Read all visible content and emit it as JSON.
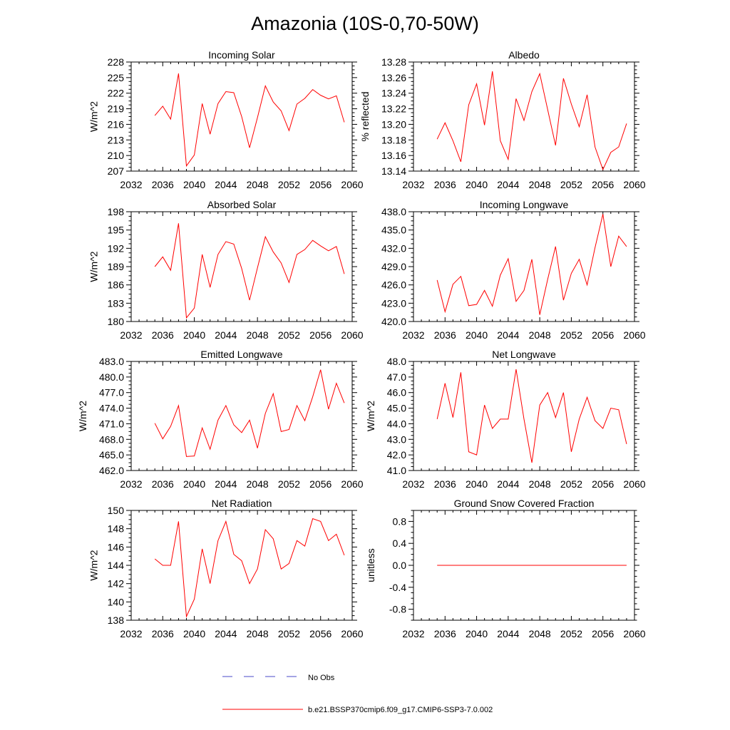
{
  "figure": {
    "title": "Amazonia (10S-0,70-50W)",
    "legend": [
      {
        "label": "No Obs",
        "style": "dashed",
        "color": "#4a4ac8"
      },
      {
        "label": "b.e21.BSSP370cmip6.f09_g17.CMIP6-SSP3-7.0.002",
        "style": "solid",
        "color": "#ff0000"
      }
    ]
  },
  "chart_data": [
    {
      "type": "line",
      "title": "Incoming Solar",
      "ylabel": "W/m^2",
      "xlim": [
        2032,
        2060
      ],
      "ylim": [
        207,
        228
      ],
      "xticks": [
        "2032",
        "2036",
        "2040",
        "2044",
        "2048",
        "2052",
        "2056",
        "2060"
      ],
      "yticks": [
        "207",
        "210",
        "213",
        "216",
        "219",
        "222",
        "225",
        "228"
      ],
      "x": [
        2035,
        2036,
        2037,
        2038,
        2039,
        2040,
        2041,
        2042,
        2043,
        2044,
        2045,
        2046,
        2047,
        2048,
        2049,
        2050,
        2051,
        2052,
        2053,
        2054,
        2055,
        2056,
        2057,
        2058,
        2059
      ],
      "series": [
        {
          "color": "#ff0000",
          "values": [
            217.7,
            219.5,
            217.0,
            225.8,
            208.0,
            210.1,
            220.0,
            214.1,
            220.0,
            222.3,
            222.1,
            217.5,
            211.5,
            217.3,
            223.4,
            220.3,
            218.6,
            214.8,
            219.9,
            221.0,
            222.7,
            221.6,
            220.9,
            221.5,
            216.4
          ]
        }
      ]
    },
    {
      "type": "line",
      "title": "Albedo",
      "ylabel": "% reflected",
      "xlim": [
        2032,
        2060
      ],
      "ylim": [
        13.14,
        13.28
      ],
      "xticks": [
        "2032",
        "2036",
        "2040",
        "2044",
        "2048",
        "2052",
        "2056",
        "2060"
      ],
      "yticks": [
        "13.14",
        "13.16",
        "13.18",
        "13.20",
        "13.22",
        "13.24",
        "13.26",
        "13.28"
      ],
      "x": [
        2035,
        2036,
        2037,
        2038,
        2039,
        2040,
        2041,
        2042,
        2043,
        2044,
        2045,
        2046,
        2047,
        2048,
        2049,
        2050,
        2051,
        2052,
        2053,
        2054,
        2055,
        2056,
        2057,
        2058,
        2059
      ],
      "series": [
        {
          "color": "#ff0000",
          "values": [
            13.181,
            13.202,
            13.179,
            13.152,
            13.225,
            13.252,
            13.199,
            13.268,
            13.179,
            13.155,
            13.233,
            13.205,
            13.242,
            13.265,
            13.219,
            13.173,
            13.259,
            13.226,
            13.197,
            13.238,
            13.171,
            13.142,
            13.164,
            13.171,
            13.201
          ]
        }
      ]
    },
    {
      "type": "line",
      "title": "Absorbed Solar",
      "ylabel": "W/m^2",
      "xlim": [
        2032,
        2060
      ],
      "ylim": [
        180,
        198
      ],
      "xticks": [
        "2032",
        "2036",
        "2040",
        "2044",
        "2048",
        "2052",
        "2056",
        "2060"
      ],
      "yticks": [
        "180",
        "183",
        "186",
        "189",
        "192",
        "195",
        "198"
      ],
      "x": [
        2035,
        2036,
        2037,
        2038,
        2039,
        2040,
        2041,
        2042,
        2043,
        2044,
        2045,
        2046,
        2047,
        2048,
        2049,
        2050,
        2051,
        2052,
        2053,
        2054,
        2055,
        2056,
        2057,
        2058,
        2059
      ],
      "series": [
        {
          "color": "#ff0000",
          "values": [
            189.0,
            190.6,
            188.4,
            196.1,
            180.6,
            182.2,
            191.0,
            185.6,
            191.0,
            193.1,
            192.7,
            188.7,
            183.5,
            188.8,
            193.9,
            191.4,
            189.6,
            186.4,
            191.0,
            191.8,
            193.3,
            192.4,
            191.6,
            192.3,
            187.8
          ]
        }
      ]
    },
    {
      "type": "line",
      "title": "Incoming Longwave",
      "ylabel": "",
      "xlim": [
        2032,
        2060
      ],
      "ylim": [
        420,
        438
      ],
      "xticks": [
        "2032",
        "2036",
        "2040",
        "2044",
        "2048",
        "2052",
        "2056",
        "2060"
      ],
      "yticks": [
        "420.0",
        "423.0",
        "426.0",
        "429.0",
        "432.0",
        "435.0",
        "438.0"
      ],
      "x": [
        2035,
        2036,
        2037,
        2038,
        2039,
        2040,
        2041,
        2042,
        2043,
        2044,
        2045,
        2046,
        2047,
        2048,
        2049,
        2050,
        2051,
        2052,
        2053,
        2054,
        2055,
        2056,
        2057,
        2058,
        2059
      ],
      "series": [
        {
          "color": "#ff0000",
          "values": [
            426.8,
            421.6,
            426.1,
            427.4,
            422.6,
            422.8,
            425.1,
            422.5,
            427.6,
            430.3,
            423.3,
            425.1,
            430.2,
            421.1,
            426.9,
            432.3,
            423.5,
            427.9,
            430.2,
            426.0,
            432.1,
            437.6,
            429.0,
            434.0,
            432.3
          ]
        }
      ]
    },
    {
      "type": "line",
      "title": "Emitted Longwave",
      "ylabel": "W/m^2",
      "xlim": [
        2032,
        2060
      ],
      "ylim": [
        462,
        483
      ],
      "xticks": [
        "2032",
        "2036",
        "2040",
        "2044",
        "2048",
        "2052",
        "2056",
        "2060"
      ],
      "yticks": [
        "462.0",
        "465.0",
        "468.0",
        "471.0",
        "474.0",
        "477.0",
        "480.0",
        "483.0"
      ],
      "x": [
        2035,
        2036,
        2037,
        2038,
        2039,
        2040,
        2041,
        2042,
        2043,
        2044,
        2045,
        2046,
        2047,
        2048,
        2049,
        2050,
        2051,
        2052,
        2053,
        2054,
        2055,
        2056,
        2057,
        2058,
        2059
      ],
      "series": [
        {
          "color": "#ff0000",
          "values": [
            471.1,
            468.1,
            470.5,
            474.5,
            464.7,
            464.8,
            470.2,
            466.1,
            471.7,
            474.5,
            470.8,
            469.3,
            471.7,
            466.3,
            473.0,
            476.8,
            469.5,
            469.9,
            474.5,
            471.6,
            476.2,
            481.4,
            473.8,
            478.8,
            475.0
          ]
        }
      ]
    },
    {
      "type": "line",
      "title": "Net Longwave",
      "ylabel": "W/m^2",
      "xlim": [
        2032,
        2060
      ],
      "ylim": [
        41,
        48
      ],
      "xticks": [
        "2032",
        "2036",
        "2040",
        "2044",
        "2048",
        "2052",
        "2056",
        "2060"
      ],
      "yticks": [
        "41.0",
        "42.0",
        "43.0",
        "44.0",
        "45.0",
        "46.0",
        "47.0",
        "48.0"
      ],
      "x": [
        2035,
        2036,
        2037,
        2038,
        2039,
        2040,
        2041,
        2042,
        2043,
        2044,
        2045,
        2046,
        2047,
        2048,
        2049,
        2050,
        2051,
        2052,
        2053,
        2054,
        2055,
        2056,
        2057,
        2058,
        2059
      ],
      "series": [
        {
          "color": "#ff0000",
          "values": [
            44.3,
            46.6,
            44.4,
            47.3,
            42.2,
            42.0,
            45.2,
            43.7,
            44.3,
            44.3,
            47.5,
            44.3,
            41.5,
            45.2,
            46.0,
            44.4,
            46.0,
            42.2,
            44.3,
            45.7,
            44.2,
            43.7,
            45.0,
            44.9,
            42.7
          ]
        }
      ]
    },
    {
      "type": "line",
      "title": "Net Radiation",
      "ylabel": "W/m^2",
      "xlim": [
        2032,
        2060
      ],
      "ylim": [
        138,
        150
      ],
      "xticks": [
        "2032",
        "2036",
        "2040",
        "2044",
        "2048",
        "2052",
        "2056",
        "2060"
      ],
      "yticks": [
        "138",
        "140",
        "142",
        "144",
        "146",
        "148",
        "150"
      ],
      "x": [
        2035,
        2036,
        2037,
        2038,
        2039,
        2040,
        2041,
        2042,
        2043,
        2044,
        2045,
        2046,
        2047,
        2048,
        2049,
        2050,
        2051,
        2052,
        2053,
        2054,
        2055,
        2056,
        2057,
        2058,
        2059
      ],
      "series": [
        {
          "color": "#ff0000",
          "values": [
            144.7,
            144.0,
            144.0,
            148.8,
            138.4,
            140.3,
            145.8,
            142.0,
            146.7,
            148.8,
            145.2,
            144.5,
            142.0,
            143.6,
            147.9,
            146.9,
            143.6,
            144.2,
            146.7,
            146.1,
            149.1,
            148.8,
            146.7,
            147.4,
            145.1
          ]
        }
      ]
    },
    {
      "type": "line",
      "title": "Ground Snow Covered Fraction",
      "ylabel": "unitless",
      "xlim": [
        2032,
        2060
      ],
      "ylim": [
        -1.0,
        1.0
      ],
      "xticks": [
        "2032",
        "2036",
        "2040",
        "2044",
        "2048",
        "2052",
        "2056",
        "2060"
      ],
      "yticks": [
        "-0.8",
        "-0.4",
        "0.0",
        "0.4",
        "0.8"
      ],
      "ytick_values": [
        -0.8,
        -0.4,
        0.0,
        0.4,
        0.8
      ],
      "x": [
        2035,
        2036,
        2037,
        2038,
        2039,
        2040,
        2041,
        2042,
        2043,
        2044,
        2045,
        2046,
        2047,
        2048,
        2049,
        2050,
        2051,
        2052,
        2053,
        2054,
        2055,
        2056,
        2057,
        2058,
        2059
      ],
      "series": [
        {
          "color": "#ff0000",
          "values": [
            0,
            0,
            0,
            0,
            0,
            0,
            0,
            0,
            0,
            0,
            0,
            0,
            0,
            0,
            0,
            0,
            0,
            0,
            0,
            0,
            0,
            0,
            0,
            0,
            0
          ]
        }
      ]
    }
  ]
}
